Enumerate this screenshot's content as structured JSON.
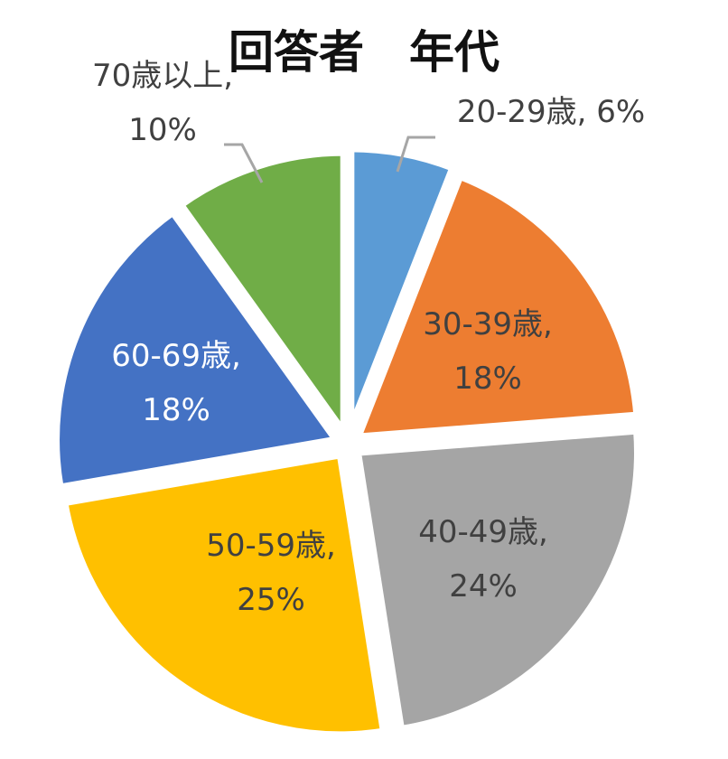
{
  "chart_data": {
    "type": "pie",
    "title": "回答者　年代",
    "categories": [
      "20-29歳",
      "30-39歳",
      "40-49歳",
      "50-59歳",
      "60-69歳",
      "70歳以上"
    ],
    "values": [
      6,
      18,
      24,
      25,
      18,
      10
    ],
    "value_suffix": "%",
    "colors": [
      "#5b9bd5",
      "#ed7d31",
      "#a5a5a5",
      "#ffc000",
      "#4472c4",
      "#70ad47"
    ],
    "data_labels": [
      {
        "category": "20-29歳,",
        "value": "6%"
      },
      {
        "category": "30-39歳,",
        "value": "18%"
      },
      {
        "category": "40-49歳,",
        "value": "24%"
      },
      {
        "category": "50-59歳,",
        "value": "25%"
      },
      {
        "category": "60-69歳,",
        "value": "18%"
      },
      {
        "category": "70歳以上,",
        "value": "10%"
      }
    ],
    "start_angle_note": "clockwise from 12 o'clock",
    "legend": "none"
  }
}
